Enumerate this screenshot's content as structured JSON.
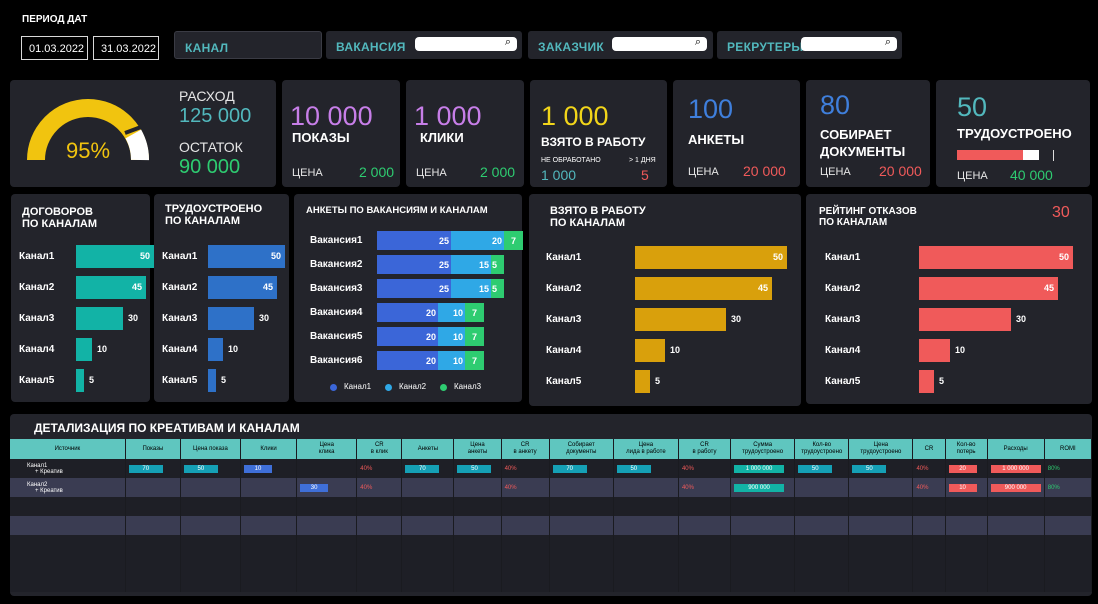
{
  "filters": {
    "period_label": "ПЕРИОД ДАТ",
    "date_from": "01.03.2022",
    "date_to": "31.03.2022",
    "channel_label": "КАНАЛ",
    "vacancy_label": "ВАКАНСИЯ",
    "customer_label": "ЗАКАЗЧИК",
    "recruiters_label": "РЕКРУТЕРЫ",
    "search_icon": "⌕"
  },
  "gauge": {
    "percent_text": "95%",
    "value_fraction": 0.95,
    "color": "#f1c40f"
  },
  "spend": {
    "label": "РАСХОД",
    "value": "125 000",
    "rest_label": "ОСТАТОК",
    "rest_value": "90 000"
  },
  "kpis": {
    "shows": {
      "value": "10 000",
      "label": "ПОКАЗЫ",
      "price_label": "ЦЕНА",
      "price": "2 000",
      "color": "#c77ee8"
    },
    "clicks": {
      "value": "1 000",
      "label": "КЛИКИ",
      "price_label": "ЦЕНА",
      "price": "2 000",
      "color": "#c77ee8"
    },
    "taken": {
      "value": "1 000",
      "label": "ВЗЯТО В РАБОТУ",
      "unprocessed_label": "НЕ ОБРАБОТАНО",
      "unprocessed": "1 000",
      "day_label": "> 1 ДНЯ",
      "day_value": "5",
      "color": "#f1d51a"
    },
    "forms": {
      "value": "100",
      "label": "АНКЕТЫ",
      "price_label": "ЦЕНА",
      "price": "20 000",
      "color": "#3f7fdc"
    },
    "docs": {
      "value": "80",
      "label_line1": "СОБИРАЕТ",
      "label_line2": "ДОКУМЕНТЫ",
      "price_label": "ЦЕНА",
      "price": "20 000",
      "color": "#3f7fdc"
    },
    "employed": {
      "value": "50",
      "label": "ТРУДОУСТРОЕНО",
      "progress_text": "80%",
      "progress": 0.8,
      "price_label": "ЦЕНА",
      "price": "40 000",
      "color": "#52b8bd"
    }
  },
  "charts": {
    "contracts": {
      "title_line1": "ДОГОВОРОВ",
      "title_line2": "ПО КАНАЛАМ",
      "color": "#12b3a6"
    },
    "employed_ch": {
      "title_line1": "ТРУДОУСТРОЕНО",
      "title_line2": "ПО КАНАЛАМ",
      "color": "#2e71c8"
    },
    "vacancies": {
      "title": "АНКЕТЫ ПО ВАКАНСИЯМ И КАНАЛАМ"
    },
    "taken_ch": {
      "title_line1": "ВЗЯТО В РАБОТУ",
      "title_line2": "ПО КАНАЛАМ",
      "color": "#d9a00c"
    },
    "refusals": {
      "title_line1": "РЕЙТИНГ ОТКАЗОВ",
      "title_line2": "ПО КАНАЛАМ",
      "total": "30",
      "color": "#f05a5a"
    }
  },
  "chart_data": [
    {
      "type": "bar",
      "title": "ДОГОВОРОВ ПО КАНАЛАМ",
      "categories": [
        "Канал1",
        "Канал2",
        "Канал3",
        "Канал4",
        "Канал5"
      ],
      "values": [
        50,
        45,
        30,
        10,
        5
      ]
    },
    {
      "type": "bar",
      "title": "ТРУДОУСТРОЕНО ПО КАНАЛАМ",
      "categories": [
        "Канал1",
        "Канал2",
        "Канал3",
        "Канал4",
        "Канал5"
      ],
      "values": [
        50,
        45,
        30,
        10,
        5
      ]
    },
    {
      "type": "bar",
      "title": "АНКЕТЫ ПО ВАКАНСИЯМ И КАНАЛАМ",
      "stacked": true,
      "categories": [
        "Вакансия1",
        "Вакансия2",
        "Вакансия3",
        "Вакансия4",
        "Вакансия5",
        "Вакансия6"
      ],
      "series": [
        {
          "name": "Канал1",
          "values": [
            25,
            25,
            25,
            20,
            20,
            20
          ],
          "color": "#3b66d8"
        },
        {
          "name": "Канал2",
          "values": [
            20,
            15,
            15,
            10,
            10,
            10
          ],
          "color": "#2fa8e6"
        },
        {
          "name": "Канал3",
          "values": [
            7,
            5,
            5,
            7,
            7,
            7
          ],
          "color": "#2ecc71"
        }
      ]
    },
    {
      "type": "bar",
      "title": "ВЗЯТО В РАБОТУ ПО КАНАЛАМ",
      "categories": [
        "Канал1",
        "Канал2",
        "Канал3",
        "Канал4",
        "Канал5"
      ],
      "values": [
        50,
        45,
        30,
        10,
        5
      ]
    },
    {
      "type": "bar",
      "title": "РЕЙТИНГ ОТКАЗОВ ПО КАНАЛАМ",
      "categories": [
        "Канал1",
        "Канал2",
        "Канал3",
        "Канал4",
        "Канал5"
      ],
      "values": [
        50,
        45,
        30,
        10,
        5
      ]
    }
  ],
  "table": {
    "title": "ДЕТАЛИЗАЦИЯ ПО КРЕАТИВАМ И КАНАЛАМ",
    "headers": [
      [
        "Источник"
      ],
      [
        "Показы"
      ],
      [
        "Цена показа"
      ],
      [
        "Клики"
      ],
      [
        "Цена",
        "клика"
      ],
      [
        "CR",
        "в клик"
      ],
      [
        "Анкеты"
      ],
      [
        "Цена",
        "анкеты"
      ],
      [
        "CR",
        "в анкету"
      ],
      [
        "Собирает",
        "документы"
      ],
      [
        "Цена",
        "лида в работе"
      ],
      [
        "CR",
        "в работу"
      ],
      [
        "Сумма",
        "трудоустроено"
      ],
      [
        "Кол-во",
        "трудоустроено"
      ],
      [
        "Цена",
        "трудоустроено"
      ],
      [
        "CR"
      ],
      [
        "Кол-во",
        "потерь"
      ],
      [
        "Расходы"
      ],
      [
        "ROMI"
      ]
    ],
    "rows": [
      {
        "source_line1": "Канал1",
        "source_line2": "+ Креатив",
        "shows": "70",
        "price_show": "50",
        "clicks": "10",
        "price_click": "",
        "cr_click": "40%",
        "forms": "70",
        "price_form": "50",
        "cr_form": "40%",
        "docs": "70",
        "price_lead": "50",
        "cr_work": "40%",
        "sum_emp": "1 000 000",
        "cnt_emp": "50",
        "price_emp": "50",
        "cr": "40%",
        "losses": "20",
        "spend": "1 000 000",
        "romi": "80%"
      },
      {
        "source_line1": "Канал2",
        "source_line2": "+ Креатив",
        "shows": "",
        "price_show": "",
        "clicks": "",
        "price_click": "30",
        "cr_click": "40%",
        "forms": "",
        "price_form": "",
        "cr_form": "40%",
        "docs": "",
        "price_lead": "",
        "cr_work": "40%",
        "sum_emp": "900 000",
        "cnt_emp": "",
        "price_emp": "",
        "cr": "40%",
        "losses": "10",
        "spend": "900 000",
        "romi": "80%"
      }
    ]
  }
}
